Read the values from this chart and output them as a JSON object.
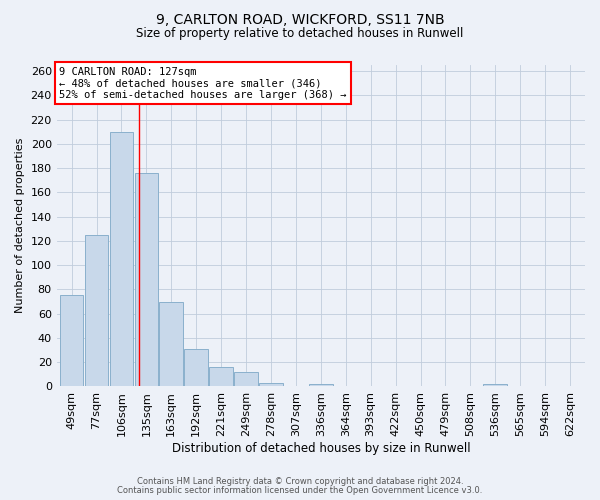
{
  "title1": "9, CARLTON ROAD, WICKFORD, SS11 7NB",
  "title2": "Size of property relative to detached houses in Runwell",
  "xlabel": "Distribution of detached houses by size in Runwell",
  "ylabel": "Number of detached properties",
  "categories": [
    "49sqm",
    "77sqm",
    "106sqm",
    "135sqm",
    "163sqm",
    "192sqm",
    "221sqm",
    "249sqm",
    "278sqm",
    "307sqm",
    "336sqm",
    "364sqm",
    "393sqm",
    "422sqm",
    "450sqm",
    "479sqm",
    "508sqm",
    "536sqm",
    "565sqm",
    "594sqm",
    "622sqm"
  ],
  "values": [
    75,
    125,
    210,
    176,
    70,
    31,
    16,
    12,
    3,
    0,
    2,
    0,
    0,
    0,
    0,
    0,
    0,
    2,
    0,
    0,
    0
  ],
  "bar_color": "#c8d8ea",
  "bar_edge_color": "#8ab0cc",
  "grid_color": "#c0ccdc",
  "bg_color": "#edf1f8",
  "red_line_x": 2.72,
  "annotation_text": "9 CARLTON ROAD: 127sqm\n← 48% of detached houses are smaller (346)\n52% of semi-detached houses are larger (368) →",
  "footnote1": "Contains HM Land Registry data © Crown copyright and database right 2024.",
  "footnote2": "Contains public sector information licensed under the Open Government Licence v3.0.",
  "ylim": [
    0,
    265
  ],
  "yticks": [
    0,
    20,
    40,
    60,
    80,
    100,
    120,
    140,
    160,
    180,
    200,
    220,
    240,
    260
  ]
}
